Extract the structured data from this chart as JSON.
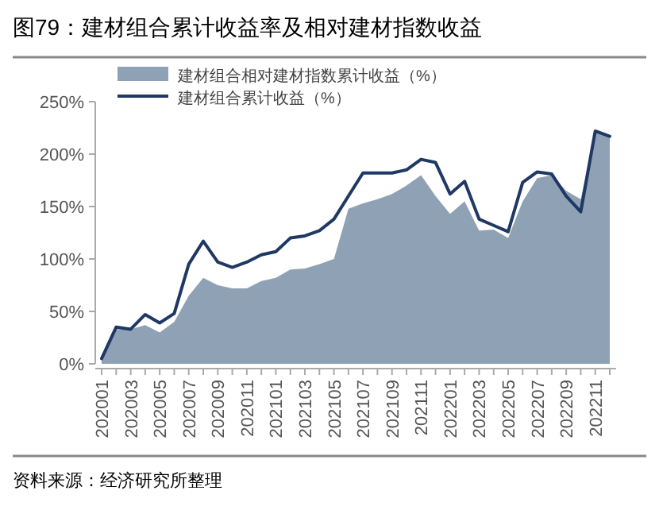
{
  "chart_data": {
    "type": "area",
    "title": "图79：建材组合累计收益率及相对建材指数收益",
    "categories": [
      "202001",
      null,
      "202003",
      null,
      "202005",
      null,
      "202007",
      null,
      "202009",
      null,
      "202011",
      null,
      "202101",
      null,
      "202103",
      null,
      "202105",
      null,
      "202107",
      null,
      "202109",
      null,
      "202111",
      null,
      "202201",
      null,
      "202203",
      null,
      "202205",
      null,
      "202207",
      null,
      "202209",
      null,
      "202211",
      null
    ],
    "series": [
      {
        "name": "建材组合相对建材指数累计收益（%）",
        "color": "#8fa2b5",
        "values": [
          5,
          33,
          33,
          37,
          30,
          40,
          65,
          82,
          75,
          72,
          72,
          79,
          82,
          90,
          91,
          95,
          100,
          148,
          153,
          157,
          162,
          170,
          180,
          160,
          143,
          155,
          127,
          128,
          120,
          155,
          177,
          180,
          165,
          157,
          222,
          217
        ]
      },
      {
        "name": "建材组合累计收益（%）",
        "type": "line",
        "color": "#1f3864",
        "values": [
          5,
          35,
          33,
          47,
          39,
          48,
          95,
          117,
          97,
          92,
          97,
          104,
          107,
          120,
          122,
          127,
          138,
          160,
          182,
          182,
          182,
          185,
          195,
          192,
          162,
          174,
          138,
          132,
          126,
          173,
          183,
          181,
          160,
          145,
          222,
          217
        ]
      }
    ],
    "ylim": [
      0,
      250
    ],
    "yticks": [
      {
        "value": 0,
        "label": "0%"
      },
      {
        "value": 50,
        "label": "50%"
      },
      {
        "value": 100,
        "label": "100%"
      },
      {
        "value": 150,
        "label": "150%"
      },
      {
        "value": 200,
        "label": "200%"
      },
      {
        "value": 250,
        "label": "250%"
      }
    ],
    "grid": false,
    "legend": "top",
    "annotations": [
      "资料来源：经济研究所整理"
    ]
  }
}
